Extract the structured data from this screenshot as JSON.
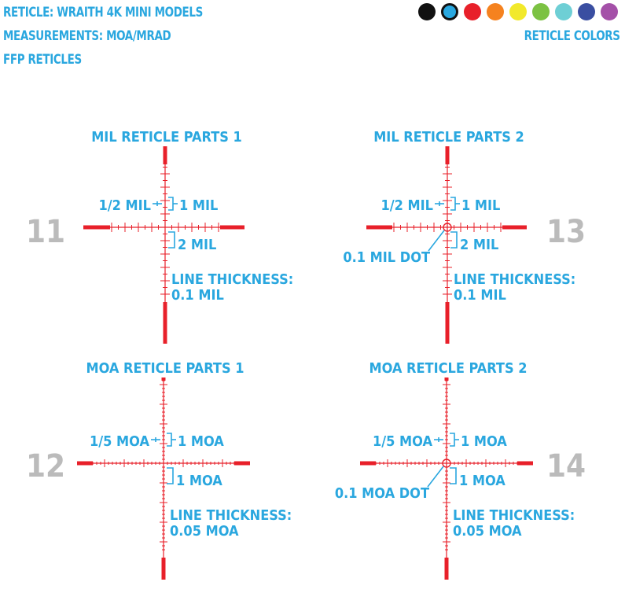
{
  "header": {
    "reticle_line": "RETICLE: WRAITH  4K MINI MODELS",
    "measurements_line": "MEASUREMENTS: MOA/MRAD",
    "ffp_line": "FFP RETICLES"
  },
  "colors": {
    "title": "RETICLE COLORS",
    "swatches": [
      "#111111",
      "#29a8e0",
      "#e8202a",
      "#f5821f",
      "#f2e92b",
      "#7cc243",
      "#6ecfd5",
      "#3a4ea1",
      "#a450a8"
    ],
    "selected_index": 1
  },
  "accent_color": "#2aa7df",
  "reticle_color": "#e8202a",
  "number_color": "#bbbbbb",
  "reticles": [
    {
      "number": "11",
      "title": "MIL RETICLE PARTS 1",
      "half_label": "1/2 MIL",
      "upper_label": "1 MIL",
      "lower_label": "2 MIL",
      "thickness_label": "LINE THICKNESS:",
      "thickness_value": "0.1 MIL",
      "dot_label": "",
      "unit": "mil",
      "has_dot": false
    },
    {
      "number": "13",
      "title": "MIL RETICLE PARTS 2",
      "half_label": "1/2 MIL",
      "upper_label": "1 MIL",
      "lower_label": "2 MIL",
      "thickness_label": "LINE THICKNESS:",
      "thickness_value": "0.1 MIL",
      "dot_label": "0.1 MIL DOT",
      "unit": "mil",
      "has_dot": true
    },
    {
      "number": "12",
      "title": "MOA RETICLE PARTS 1",
      "half_label": "1/5 MOA",
      "upper_label": "1 MOA",
      "lower_label": "1 MOA",
      "thickness_label": "LINE THICKNESS:",
      "thickness_value": "0.05 MOA",
      "dot_label": "",
      "unit": "moa",
      "has_dot": false
    },
    {
      "number": "14",
      "title": "MOA RETICLE PARTS 2",
      "half_label": "1/5 MOA",
      "upper_label": "1 MOA",
      "lower_label": "1 MOA",
      "thickness_label": "LINE THICKNESS:",
      "thickness_value": "0.05 MOA",
      "dot_label": "0.1 MOA DOT",
      "unit": "moa",
      "has_dot": true
    }
  ]
}
